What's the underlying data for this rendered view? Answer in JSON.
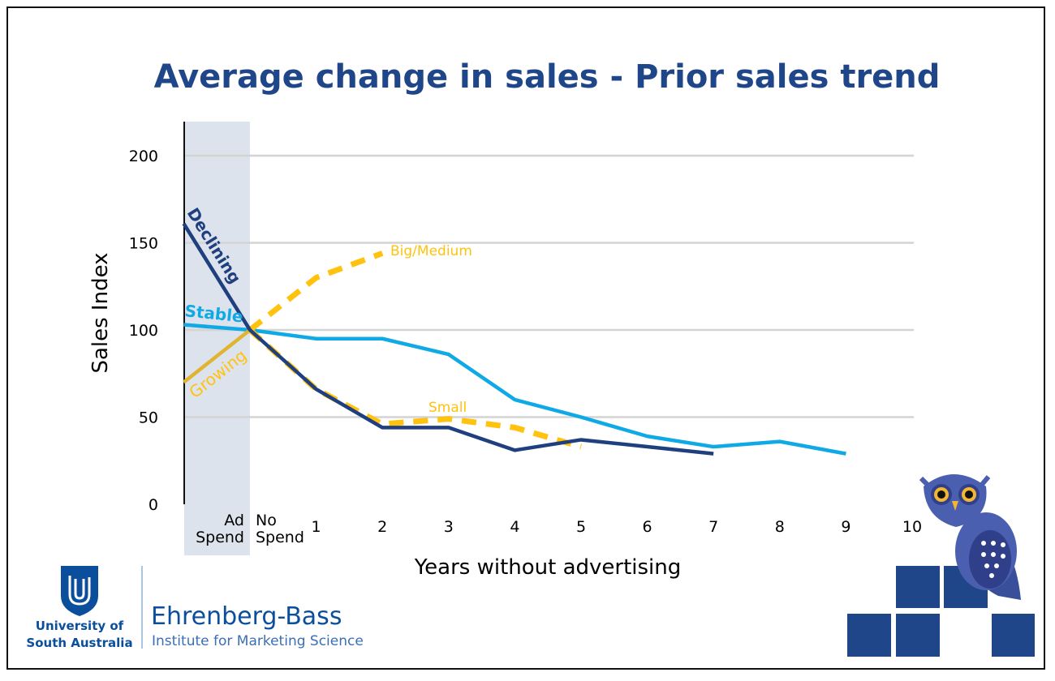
{
  "chart_data": {
    "type": "line",
    "title": "Average change in sales - Prior sales trend",
    "xlabel": "Years without advertising",
    "ylabel": "Sales Index",
    "ylim": [
      0,
      200
    ],
    "yticks": [
      "0",
      "50",
      "100",
      "150",
      "200"
    ],
    "ytick_values": [
      0,
      50,
      100,
      150,
      200
    ],
    "x_categories": [
      "Ad Spend",
      "No Spend",
      "1",
      "2",
      "3",
      "4",
      "5",
      "6",
      "7",
      "8",
      "9",
      "10"
    ],
    "x_category_lines": [
      [
        "Ad",
        "Spend"
      ],
      [
        "No",
        "Spend"
      ]
    ],
    "x": [
      -1,
      0,
      1,
      2,
      3,
      4,
      5,
      6,
      7,
      8,
      9,
      10
    ],
    "shaded_region": "Ad Spend",
    "grid": true,
    "series": [
      {
        "name": "Stable",
        "color": "#0fa9e6",
        "style": "solid",
        "x": [
          -1,
          0,
          1,
          2,
          3,
          4,
          5,
          6,
          7,
          8,
          9
        ],
        "values": [
          103,
          100,
          95,
          95,
          86,
          60,
          50,
          39,
          33,
          36,
          29
        ]
      },
      {
        "name": "Declining",
        "color": "#1f3f7f",
        "style": "solid",
        "x": [
          -1,
          0,
          1,
          2,
          3,
          4,
          5,
          6,
          7
        ],
        "values": [
          161,
          100,
          66,
          44,
          44,
          31,
          37,
          33,
          29
        ]
      },
      {
        "name": "Growing",
        "color": "#e0b430",
        "style": "solid",
        "x": [
          -1,
          0
        ],
        "values": [
          70,
          100
        ]
      },
      {
        "name": "Big/Medium",
        "color": "#ffc20e",
        "style": "dashed",
        "x": [
          0,
          1,
          2
        ],
        "values": [
          100,
          130,
          144
        ]
      },
      {
        "name": "Small",
        "color": "#ffc20e",
        "style": "dashed",
        "x": [
          0,
          1,
          2,
          3,
          4,
          5
        ],
        "values": [
          100,
          66,
          46,
          49,
          44,
          33
        ]
      }
    ]
  },
  "logos": {
    "unisa_line1": "University of",
    "unisa_line2": "South Australia",
    "ebi_name": "Ehrenberg-Bass",
    "ebi_sub": "Institute for Marketing Science"
  }
}
